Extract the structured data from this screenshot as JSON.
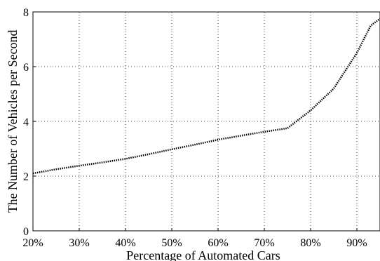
{
  "chart_data": {
    "type": "line",
    "title": "",
    "xlabel": "Percentage of Automated Cars",
    "ylabel": "The Number of Vehicles per Second",
    "xlim": [
      20,
      95
    ],
    "ylim": [
      0,
      8
    ],
    "x_ticks": [
      20,
      30,
      40,
      50,
      60,
      70,
      80,
      90
    ],
    "x_tick_labels": [
      "20%",
      "30%",
      "40%",
      "50%",
      "60%",
      "70%",
      "80%",
      "90%"
    ],
    "y_ticks": [
      0,
      2,
      4,
      6,
      8
    ],
    "y_tick_labels": [
      "0",
      "2",
      "4",
      "6",
      "8"
    ],
    "grid": true,
    "line_style": "dotted",
    "series": [
      {
        "x": [
          20,
          25,
          30,
          35,
          40,
          45,
          50,
          55,
          60,
          65,
          70,
          75,
          80,
          85,
          90,
          93,
          95
        ],
        "y": [
          2.1,
          2.25,
          2.38,
          2.5,
          2.63,
          2.8,
          2.98,
          3.15,
          3.33,
          3.48,
          3.62,
          3.75,
          4.4,
          5.2,
          6.5,
          7.5,
          7.75
        ]
      }
    ]
  }
}
